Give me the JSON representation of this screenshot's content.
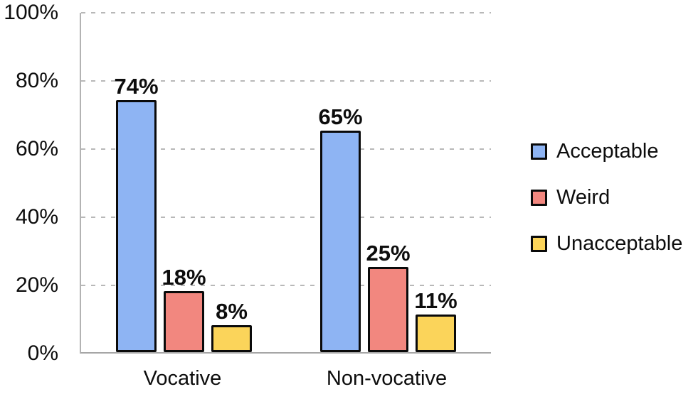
{
  "chart_data": {
    "type": "bar",
    "title": "",
    "xlabel": "",
    "ylabel": "",
    "categories": [
      "Vocative",
      "Non-vocative"
    ],
    "series": [
      {
        "name": "Acceptable",
        "color": "#8EB4F3",
        "values": [
          74,
          65
        ]
      },
      {
        "name": "Weird",
        "color": "#F2877F",
        "values": [
          18,
          25
        ]
      },
      {
        "name": "Unacceptable",
        "color": "#FBD45A",
        "values": [
          8,
          11
        ]
      }
    ],
    "data_labels": {
      "Vocative": [
        "74%",
        "18%",
        "8%"
      ],
      "Non-vocative": [
        "65%",
        "25%",
        "11%"
      ]
    },
    "value_suffix": "%",
    "ylim": [
      0,
      100
    ],
    "yticks": [
      "100%",
      "80%",
      "60%",
      "40%",
      "20%",
      "0%"
    ],
    "grid": "horizontal-dashed",
    "legend_position": "right",
    "bar_border_color": "#0A0A0A",
    "axis_color": "#A6A6A6",
    "gridline_color": "#B8B8B8",
    "label_color": "#0D0D0D"
  }
}
